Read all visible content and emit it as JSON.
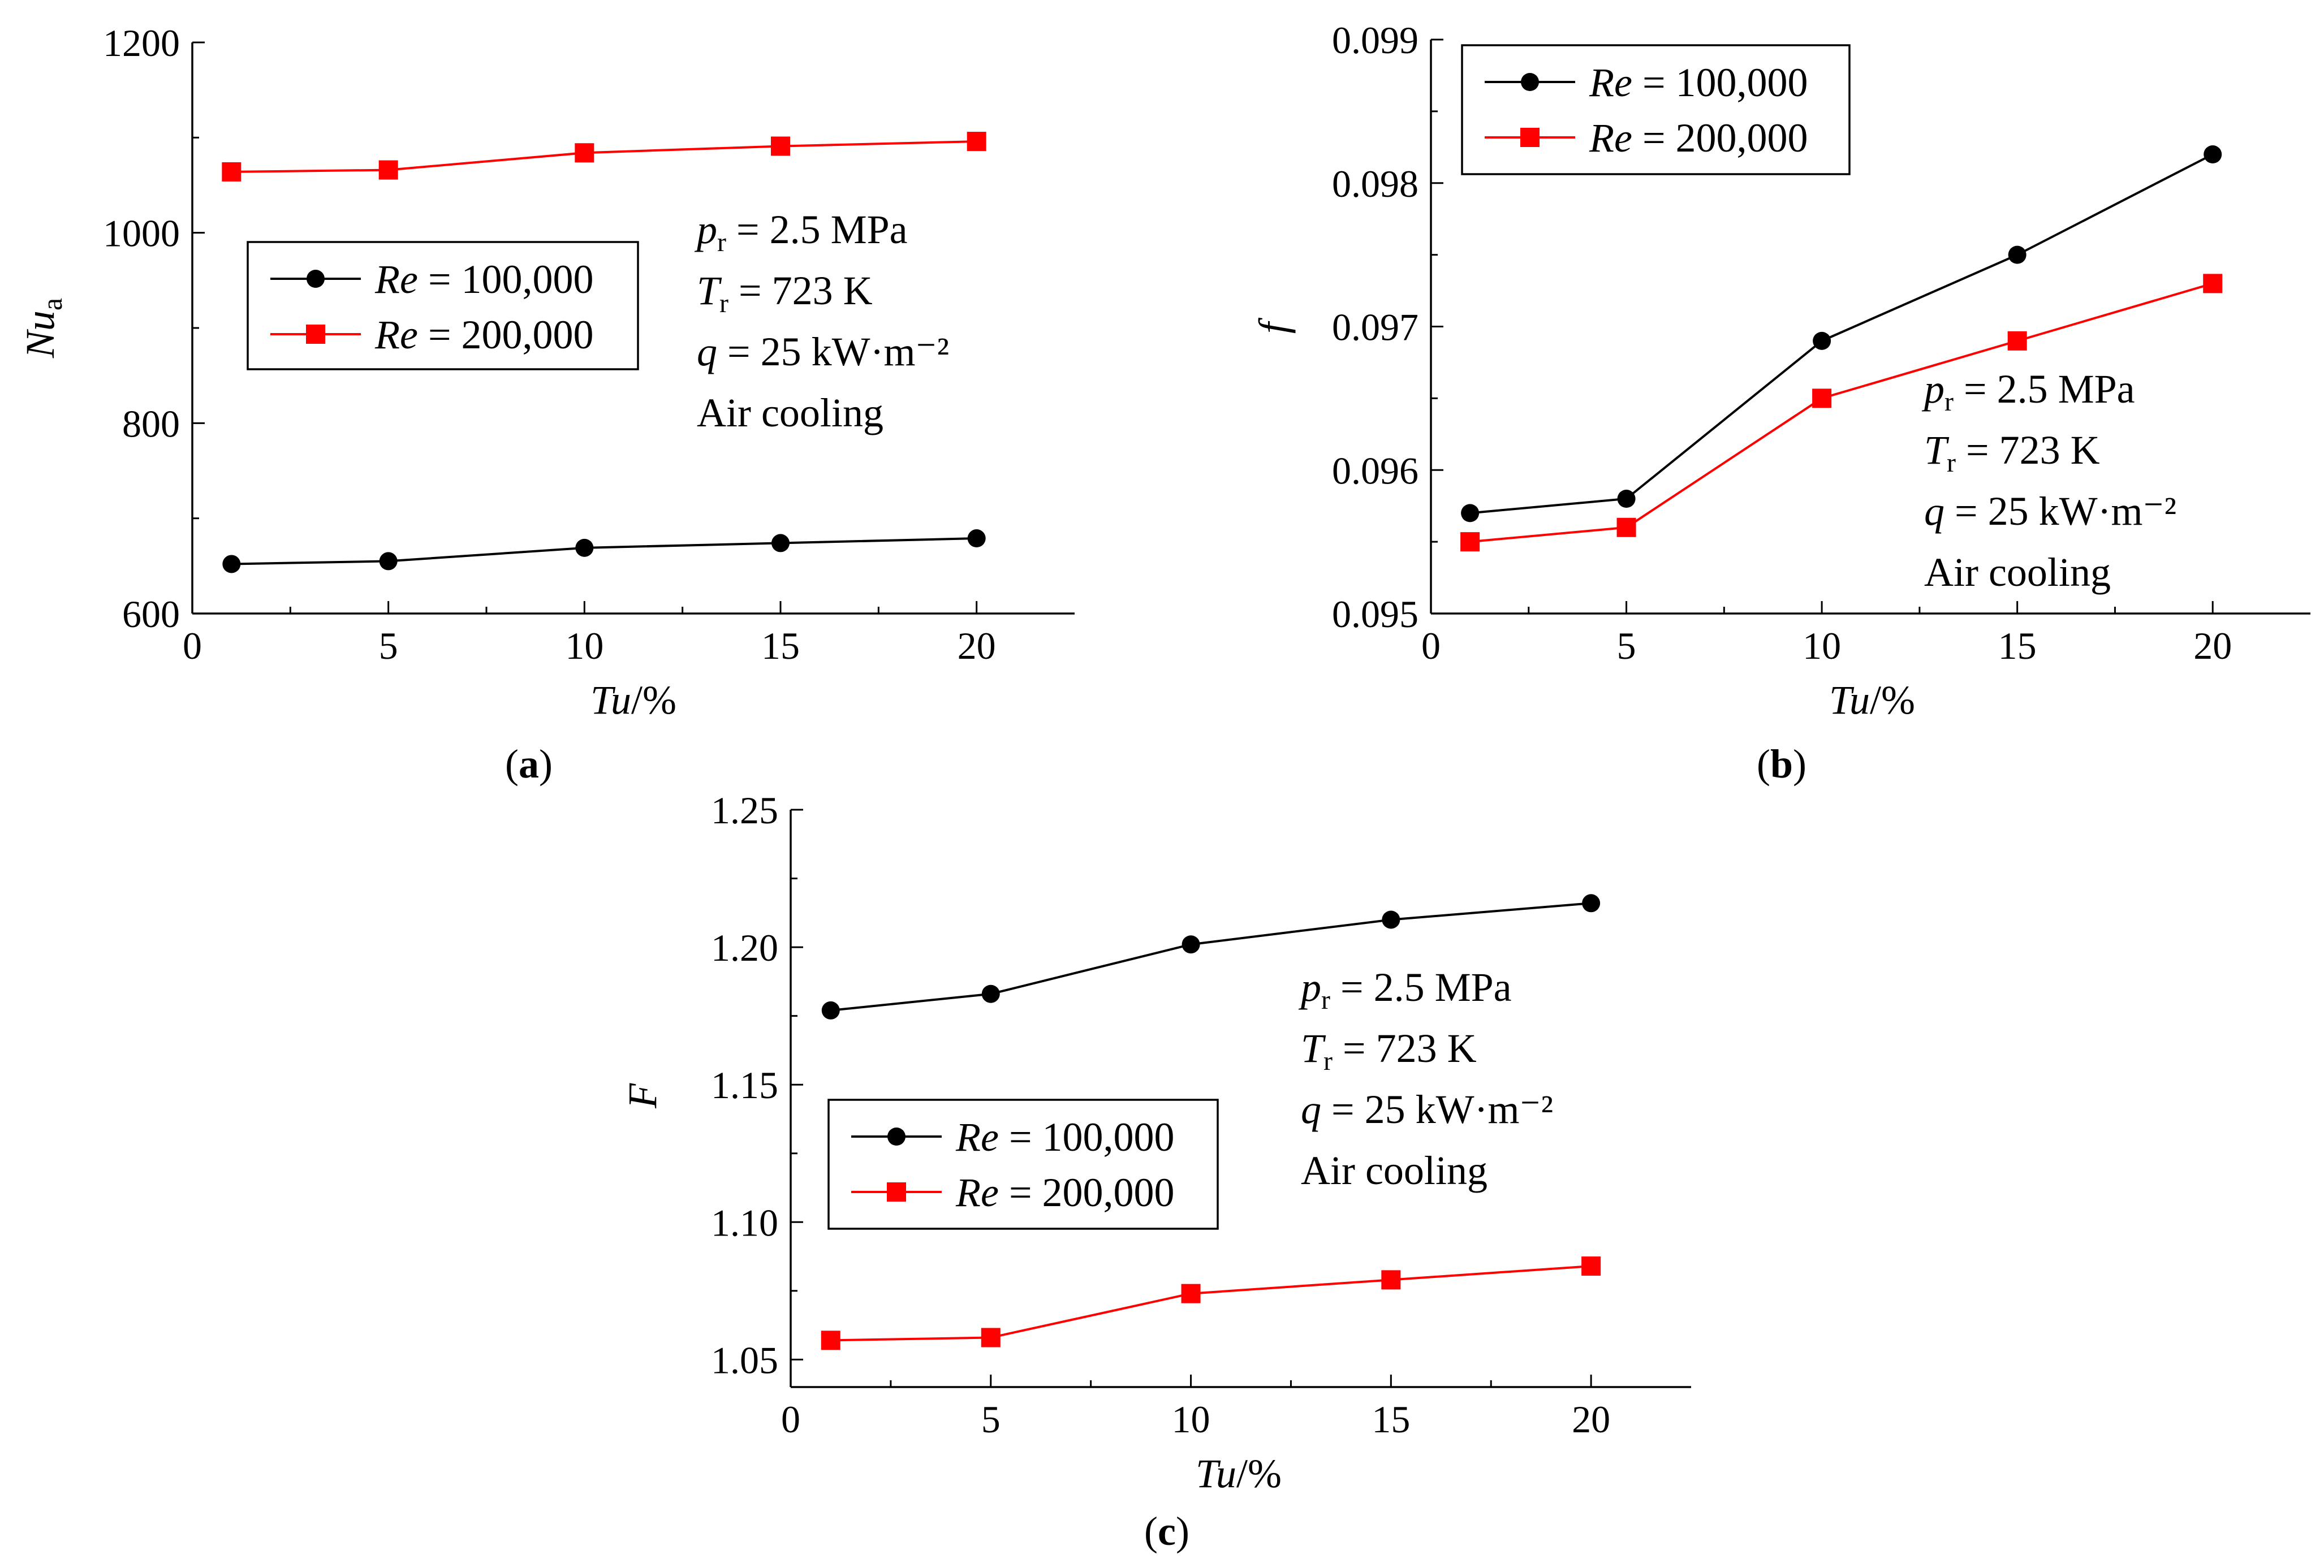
{
  "chart_data": [
    {
      "panel": "a",
      "type": "line",
      "caption": "(a)",
      "ylabel_main": "Nu",
      "ylabel_sub": "a",
      "xlabel": "Tu/%",
      "xlabel_italic": "Tu",
      "xlabel_rest": "/%",
      "xlim": [
        0,
        22.5
      ],
      "ylim": [
        600,
        1200
      ],
      "xticks": [
        0,
        5,
        10,
        15,
        20
      ],
      "xtick_labels": [
        "0",
        "5",
        "10",
        "15",
        "20"
      ],
      "yticks": [
        600,
        800,
        1000,
        1200
      ],
      "ytick_labels": [
        "600",
        "800",
        "1000",
        "1200"
      ],
      "x": [
        1,
        5,
        10,
        15,
        20
      ],
      "series": [
        {
          "name": "Re = 100,000",
          "name_italic": "Re",
          "name_rest": " = 100,000",
          "color": "#000000",
          "marker": "circle",
          "values": [
            652,
            655,
            669,
            674,
            679
          ]
        },
        {
          "name": "Re = 200,000",
          "name_italic": "Re",
          "name_rest": " = 200,000",
          "color": "#ff0000",
          "marker": "square",
          "values": [
            1064,
            1066,
            1084,
            1091,
            1096
          ]
        }
      ],
      "annotations": [
        "p_r = 2.5 MPa",
        "T_r = 723 K",
        "q = 25 kW·m⁻²",
        "Air cooling"
      ]
    },
    {
      "panel": "b",
      "type": "line",
      "caption": "(b)",
      "ylabel_main": "f",
      "ylabel_sub": "",
      "xlabel": "Tu/%",
      "xlabel_italic": "Tu",
      "xlabel_rest": "/%",
      "xlim": [
        0,
        22.5
      ],
      "ylim": [
        0.095,
        0.099
      ],
      "xticks": [
        0,
        5,
        10,
        15,
        20
      ],
      "xtick_labels": [
        "0",
        "5",
        "10",
        "15",
        "20"
      ],
      "yticks": [
        0.095,
        0.096,
        0.097,
        0.098,
        0.099
      ],
      "ytick_labels": [
        "0.095",
        "0.096",
        "0.097",
        "0.098",
        "0.099"
      ],
      "x": [
        1,
        5,
        10,
        15,
        20
      ],
      "series": [
        {
          "name": "Re = 100,000",
          "name_italic": "Re",
          "name_rest": " = 100,000",
          "color": "#000000",
          "marker": "circle",
          "values": [
            0.0957,
            0.0958,
            0.0969,
            0.0975,
            0.0982
          ]
        },
        {
          "name": "Re = 200,000",
          "name_italic": "Re",
          "name_rest": " = 200,000",
          "color": "#ff0000",
          "marker": "square",
          "values": [
            0.0955,
            0.0956,
            0.0965,
            0.0969,
            0.0973
          ]
        }
      ],
      "annotations": [
        "p_r = 2.5 MPa",
        "T_r = 723 K",
        "q = 25 kW·m⁻²",
        "Air cooling"
      ]
    },
    {
      "panel": "c",
      "type": "line",
      "caption": "(c)",
      "ylabel_main": "F",
      "ylabel_sub": "",
      "xlabel": "Tu/%",
      "xlabel_italic": "Tu",
      "xlabel_rest": "/%",
      "xlim": [
        0,
        22.5
      ],
      "ylim": [
        1.04,
        1.25
      ],
      "xticks": [
        0,
        5,
        10,
        15,
        20
      ],
      "xtick_labels": [
        "0",
        "5",
        "10",
        "15",
        "20"
      ],
      "yticks": [
        1.05,
        1.1,
        1.15,
        1.2,
        1.25
      ],
      "ytick_labels": [
        "1.05",
        "1.10",
        "1.15",
        "1.20",
        "1.25"
      ],
      "x": [
        1,
        5,
        10,
        15,
        20
      ],
      "series": [
        {
          "name": "Re = 100,000",
          "name_italic": "Re",
          "name_rest": " = 100,000",
          "color": "#000000",
          "marker": "circle",
          "values": [
            1.177,
            1.183,
            1.201,
            1.21,
            1.216
          ]
        },
        {
          "name": "Re = 200,000",
          "name_italic": "Re",
          "name_rest": " = 200,000",
          "color": "#ff0000",
          "marker": "square",
          "values": [
            1.057,
            1.058,
            1.074,
            1.079,
            1.084
          ]
        }
      ],
      "annotations": [
        "p_r = 2.5 MPa",
        "T_r = 723 K",
        "q = 25 kW·m⁻²",
        "Air cooling"
      ]
    }
  ]
}
